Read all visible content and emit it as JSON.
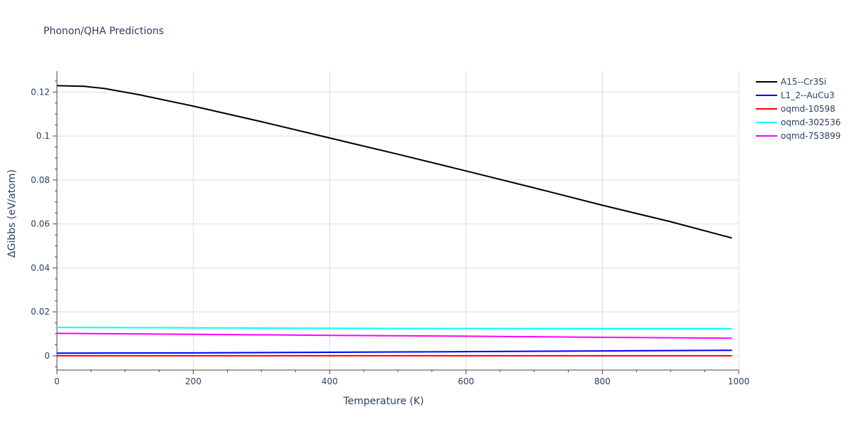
{
  "title": "Phonon/QHA Predictions",
  "chart_data": {
    "type": "line",
    "title": "Phonon/QHA Predictions",
    "xlabel": "Temperature (K)",
    "ylabel": "ΔGibbs (eV/atom)",
    "xlim": [
      0,
      1000
    ],
    "ylim": [
      -0.0065,
      0.1295
    ],
    "x_ticks": [
      0,
      200,
      400,
      600,
      800,
      1000
    ],
    "y_ticks": [
      0,
      0.02,
      0.04,
      0.06,
      0.08,
      0.1,
      0.12
    ],
    "x_tick_labels": [
      "0",
      "200",
      "400",
      "600",
      "800",
      "1000"
    ],
    "y_tick_labels": [
      "0",
      "0.02",
      "0.04",
      "0.06",
      "0.08",
      "0.1",
      "0.12"
    ],
    "grid": true,
    "legend_position": "right",
    "series": [
      {
        "name": "A15--Cr3Si",
        "color": "#000000",
        "x": [
          0,
          40,
          70,
          120,
          200,
          300,
          400,
          500,
          600,
          700,
          800,
          900,
          990
        ],
        "y": [
          0.1229,
          0.1226,
          0.1216,
          0.1188,
          0.1136,
          0.1065,
          0.0991,
          0.0917,
          0.0841,
          0.0764,
          0.0685,
          0.061,
          0.0536
        ]
      },
      {
        "name": "L1_2--AuCu3",
        "color": "#0000ff",
        "x": [
          0,
          200,
          400,
          600,
          800,
          990
        ],
        "y": [
          0.0012,
          0.0013,
          0.0016,
          0.0019,
          0.0022,
          0.0025
        ]
      },
      {
        "name": "oqmd-10598",
        "color": "#ff0000",
        "x": [
          0,
          200,
          400,
          600,
          800,
          990
        ],
        "y": [
          0.0,
          0.0,
          0.0,
          0.0,
          0.0,
          0.0
        ]
      },
      {
        "name": "oqmd-302536",
        "color": "#00ffff",
        "x": [
          0,
          200,
          400,
          600,
          800,
          990
        ],
        "y": [
          0.0129,
          0.0127,
          0.0125,
          0.0124,
          0.0123,
          0.0123
        ]
      },
      {
        "name": "oqmd-753899",
        "color": "#ff00ff",
        "x": [
          0,
          200,
          400,
          600,
          800,
          990
        ],
        "y": [
          0.0102,
          0.0098,
          0.0093,
          0.0089,
          0.0084,
          0.008
        ]
      }
    ]
  }
}
